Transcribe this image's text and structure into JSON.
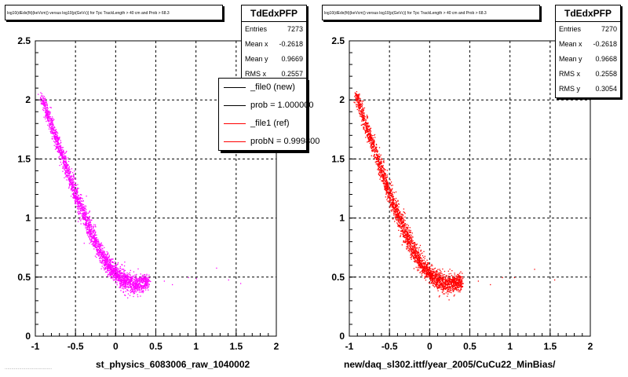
{
  "left_panel": {
    "title": "log10(dEdx(fit)(keVcm)) versus log10(p(GeVc)) for Tpc TrackLength > 40 cm and Prob > 68.3",
    "stats": {
      "name": "TdEdxPFP",
      "rows": [
        {
          "label": "Entries",
          "value": "7273"
        },
        {
          "label": "Mean x",
          "value": "-0.2618"
        },
        {
          "label": "Mean y",
          "value": "0.9669"
        },
        {
          "label": "RMS x",
          "value": "0.2557"
        }
      ]
    },
    "legend": [
      {
        "label": "_file0 (new)",
        "color": "#000000"
      },
      {
        "label": "prob = 1.000000",
        "color": "#000000"
      },
      {
        "label": "_file1 (ref)",
        "color": "#ff0000"
      },
      {
        "label": "probN = 0.999800",
        "color": "#ff0000"
      }
    ],
    "x_title": "st_physics_6083006_raw_1040002",
    "footer": "...................................."
  },
  "right_panel": {
    "title": "log10(dEdx(fit)(keVcm)) versus log10(p(GeVc)) for Tpc TrackLength > 40 cm and Prob > 68.3",
    "stats": {
      "name": "TdEdxPFP",
      "rows": [
        {
          "label": "Entries",
          "value": "7270"
        },
        {
          "label": "Mean x",
          "value": "-0.2618"
        },
        {
          "label": "Mean y",
          "value": "0.9668"
        },
        {
          "label": "RMS x",
          "value": "0.2558"
        },
        {
          "label": "RMS y",
          "value": "0.3054"
        }
      ]
    },
    "x_title": "new/daq_sl302.ittf/year_2005/CuCu22_MinBias/"
  },
  "chart_data": [
    {
      "type": "scatter",
      "title": "log10(dEdx(fit)(keVcm)) versus log10(p(GeVc)) for Tpc TrackLength > 40 cm and Prob > 68.3",
      "xlabel": "st_physics_6083006_raw_1040002",
      "ylabel": "",
      "xlim": [
        -1,
        2
      ],
      "ylim": [
        0,
        2.5
      ],
      "xticks": [
        "-1",
        "-0.5",
        "0",
        "0.5",
        "1",
        "1.5",
        "2"
      ],
      "yticks": [
        "0",
        "0.5",
        "1",
        "1.5",
        "2",
        "2.5"
      ],
      "grid": true,
      "color": "#ff00ff",
      "band": [
        {
          "x": -0.92,
          "y": 2.02
        },
        {
          "x": -0.8,
          "y": 1.78
        },
        {
          "x": -0.7,
          "y": 1.58
        },
        {
          "x": -0.6,
          "y": 1.39
        },
        {
          "x": -0.5,
          "y": 1.2
        },
        {
          "x": -0.4,
          "y": 1.03
        },
        {
          "x": -0.3,
          "y": 0.86
        },
        {
          "x": -0.2,
          "y": 0.72
        },
        {
          "x": -0.1,
          "y": 0.61
        },
        {
          "x": 0.0,
          "y": 0.53
        },
        {
          "x": 0.1,
          "y": 0.48
        },
        {
          "x": 0.2,
          "y": 0.45
        },
        {
          "x": 0.3,
          "y": 0.45
        },
        {
          "x": 0.4,
          "y": 0.46
        }
      ],
      "outliers": [
        {
          "x": 0.6,
          "y": 0.47
        },
        {
          "x": 0.9,
          "y": 0.5
        },
        {
          "x": 1.0,
          "y": 0.49
        },
        {
          "x": 1.25,
          "y": 0.58
        },
        {
          "x": 1.4,
          "y": 0.48
        },
        {
          "x": 1.55,
          "y": 0.45
        },
        {
          "x": 0.7,
          "y": 0.44
        }
      ],
      "series": [
        {
          "name": "_file0 (new)",
          "entries": 7273
        }
      ]
    },
    {
      "type": "scatter",
      "title": "log10(dEdx(fit)(keVcm)) versus log10(p(GeVc)) for Tpc TrackLength > 40 cm and Prob > 68.3",
      "xlabel": "new/daq_sl302.ittf/year_2005/CuCu22_MinBias/",
      "ylabel": "",
      "xlim": [
        -1,
        2
      ],
      "ylim": [
        0,
        2.5
      ],
      "xticks": [
        "-1",
        "-0.5",
        "0",
        "0.5",
        "1",
        "1.5",
        "2"
      ],
      "yticks": [
        "0",
        "0.5",
        "1",
        "1.5",
        "2",
        "2.5"
      ],
      "grid": true,
      "color": "#ff0000",
      "band": [
        {
          "x": -0.92,
          "y": 2.05
        },
        {
          "x": -0.8,
          "y": 1.8
        },
        {
          "x": -0.7,
          "y": 1.6
        },
        {
          "x": -0.6,
          "y": 1.4
        },
        {
          "x": -0.5,
          "y": 1.2
        },
        {
          "x": -0.4,
          "y": 1.03
        },
        {
          "x": -0.3,
          "y": 0.86
        },
        {
          "x": -0.2,
          "y": 0.72
        },
        {
          "x": -0.1,
          "y": 0.61
        },
        {
          "x": 0.0,
          "y": 0.53
        },
        {
          "x": 0.1,
          "y": 0.48
        },
        {
          "x": 0.2,
          "y": 0.45
        },
        {
          "x": 0.3,
          "y": 0.45
        },
        {
          "x": 0.4,
          "y": 0.46
        }
      ],
      "outliers": [
        {
          "x": 0.6,
          "y": 0.47
        },
        {
          "x": 0.9,
          "y": 0.5
        },
        {
          "x": 1.05,
          "y": 0.5
        },
        {
          "x": 1.3,
          "y": 0.57
        },
        {
          "x": 1.55,
          "y": 0.48
        },
        {
          "x": 0.75,
          "y": 0.44
        }
      ],
      "series": [
        {
          "name": "_file1 (ref)",
          "entries": 7270
        }
      ]
    }
  ]
}
